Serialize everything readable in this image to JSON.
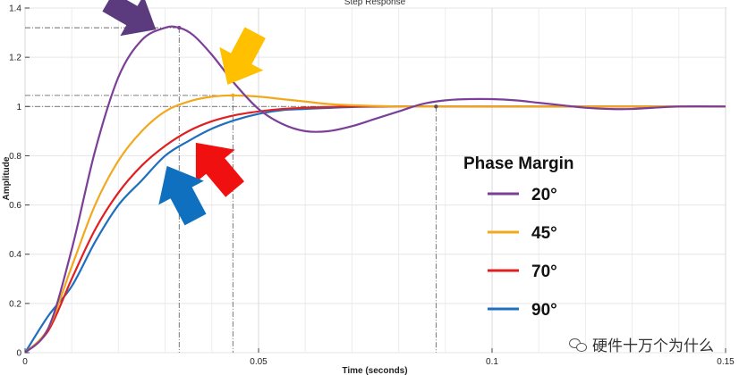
{
  "chart_data": {
    "type": "line",
    "title": "Step Response",
    "xlabel": "Time (seconds)",
    "ylabel": "Amplitude",
    "xlim": [
      0,
      0.15
    ],
    "ylim": [
      0,
      1.4
    ],
    "xticks": [
      0,
      0.05,
      0.1,
      0.15
    ],
    "xtick_labels": [
      "0",
      "0.05",
      "0.1",
      "0.15"
    ],
    "yticks": [
      0,
      0.2,
      0.4,
      0.6,
      0.8,
      1,
      1.2,
      1.4
    ],
    "ytick_labels": [
      "0",
      "0.2",
      "0.4",
      "0.6",
      "0.8",
      "1",
      "1.2",
      "1.4"
    ],
    "grid": true,
    "legend_title": "Phase Margin",
    "legend_position": "center-right",
    "series": [
      {
        "name": "20°",
        "color": "#7b3f98",
        "x": [
          0,
          0.005,
          0.01,
          0.015,
          0.02,
          0.025,
          0.03,
          0.033,
          0.036,
          0.04,
          0.045,
          0.05,
          0.055,
          0.06,
          0.065,
          0.07,
          0.075,
          0.08,
          0.085,
          0.09,
          0.095,
          0.1,
          0.105,
          0.11,
          0.115,
          0.12,
          0.125,
          0.13,
          0.14,
          0.15
        ],
        "y": [
          0,
          0.1,
          0.42,
          0.82,
          1.12,
          1.27,
          1.32,
          1.32,
          1.29,
          1.21,
          1.09,
          0.99,
          0.93,
          0.9,
          0.9,
          0.92,
          0.95,
          0.98,
          1.01,
          1.025,
          1.03,
          1.03,
          1.025,
          1.015,
          1.005,
          0.995,
          0.99,
          0.99,
          1.0,
          1.0
        ]
      },
      {
        "name": "45°",
        "color": "#f2a81c",
        "x": [
          0,
          0.005,
          0.01,
          0.015,
          0.02,
          0.025,
          0.03,
          0.035,
          0.04,
          0.0445,
          0.05,
          0.055,
          0.06,
          0.065,
          0.07,
          0.08,
          0.09,
          0.1,
          0.15
        ],
        "y": [
          0,
          0.1,
          0.35,
          0.6,
          0.78,
          0.9,
          0.98,
          1.02,
          1.04,
          1.045,
          1.04,
          1.03,
          1.02,
          1.01,
          1.005,
          1.0,
          1.0,
          1.0,
          1.0
        ]
      },
      {
        "name": "70°",
        "color": "#e02020",
        "x": [
          0,
          0.005,
          0.01,
          0.015,
          0.02,
          0.025,
          0.03,
          0.035,
          0.04,
          0.045,
          0.05,
          0.055,
          0.06,
          0.065,
          0.07,
          0.08,
          0.09,
          0.15
        ],
        "y": [
          0,
          0.09,
          0.3,
          0.5,
          0.65,
          0.76,
          0.84,
          0.9,
          0.94,
          0.965,
          0.98,
          0.99,
          0.995,
          0.998,
          1.0,
          1.0,
          1.0,
          1.0
        ]
      },
      {
        "name": "90°",
        "color": "#1f6fbf",
        "x": [
          0,
          0.005,
          0.01,
          0.015,
          0.02,
          0.025,
          0.03,
          0.035,
          0.04,
          0.045,
          0.05,
          0.055,
          0.06,
          0.07,
          0.08,
          0.09,
          0.15
        ],
        "y": [
          0,
          0.15,
          0.27,
          0.45,
          0.6,
          0.7,
          0.8,
          0.86,
          0.91,
          0.945,
          0.97,
          0.985,
          0.99,
          0.998,
          1.0,
          1.0,
          1.0
        ]
      }
    ],
    "reference_lines": {
      "vertical_x": [
        0.033,
        0.0445,
        0.088
      ],
      "horizontal_y": [
        1.32,
        1.045,
        1.0
      ]
    },
    "arrows": [
      {
        "color": "#5b3a7e",
        "points_to": [
          0.033,
          1.32
        ]
      },
      {
        "color": "#ffc000",
        "points_to": [
          0.0445,
          1.045
        ]
      },
      {
        "color": "#f01010",
        "points_to": [
          0.036,
          0.86
        ]
      },
      {
        "color": "#1070c0",
        "points_to": [
          0.03,
          0.78
        ]
      }
    ]
  },
  "watermark": {
    "text": "硬件十万个为什么",
    "icon": "wechat-icon"
  }
}
